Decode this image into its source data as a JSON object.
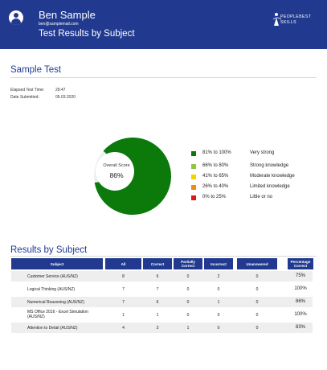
{
  "header": {
    "name": "Ben Sample",
    "email": "ben@samplemail.com",
    "subtitle": "Test Results by Subject",
    "logo_text_line1": "PEOPLEBEST",
    "logo_text_line2": "SKILLS",
    "background": "#213a8f"
  },
  "test": {
    "title": "Sample Test",
    "elapsed_label": "Elapsed Test Time:",
    "elapsed_value": "29:47",
    "submitted_label": "Date Submitted:",
    "submitted_value": "05.03.2020"
  },
  "overall": {
    "label": "Overall Score",
    "value": "86%",
    "score_fraction": 0.86,
    "score_color": "#0b7a0b",
    "remainder_color": "#eeeeee"
  },
  "legend": [
    {
      "range": "81% to 100%",
      "desc": "Very strong",
      "color": "#0b7a0b"
    },
    {
      "range": "66% to 80%",
      "desc": "Strong knowledge",
      "color": "#8fc63f"
    },
    {
      "range": "41% to 65%",
      "desc": "Moderate knowledge",
      "color": "#f2d400"
    },
    {
      "range": "26% to 40%",
      "desc": "Limited knowledge",
      "color": "#ee8b1b"
    },
    {
      "range": "0% to 25%",
      "desc": "Little or no",
      "color": "#e0161c"
    }
  ],
  "results": {
    "title": "Results by Subject",
    "columns": {
      "subject": "Subject",
      "all": "All",
      "correct": "Correct",
      "partially": "Partially Correct",
      "incorrect": "Incorrect",
      "unanswered": "Unanswered",
      "percentage": "Percentage Correct"
    },
    "rows": [
      {
        "subject": "Customer Service (AUS/NZ)",
        "all": "8",
        "correct": "6",
        "partially": "0",
        "incorrect": "2",
        "unanswered": "0",
        "percentage": "75%"
      },
      {
        "subject": "Logical Thinking (AUS/NZ)",
        "all": "7",
        "correct": "7",
        "partially": "0",
        "incorrect": "0",
        "unanswered": "0",
        "percentage": "100%"
      },
      {
        "subject": "Numerical Reasoning (AUS/NZ)",
        "all": "7",
        "correct": "6",
        "partially": "0",
        "incorrect": "1",
        "unanswered": "0",
        "percentage": "86%"
      },
      {
        "subject": "MS Office 2016 - Excel Simulation (AUS/NZ)",
        "all": "1",
        "correct": "1",
        "partially": "0",
        "incorrect": "0",
        "unanswered": "0",
        "percentage": "100%"
      },
      {
        "subject": "Attention to Detail (AUS/NZ)",
        "all": "4",
        "correct": "3",
        "partially": "1",
        "incorrect": "0",
        "unanswered": "0",
        "percentage": "83%"
      }
    ]
  }
}
